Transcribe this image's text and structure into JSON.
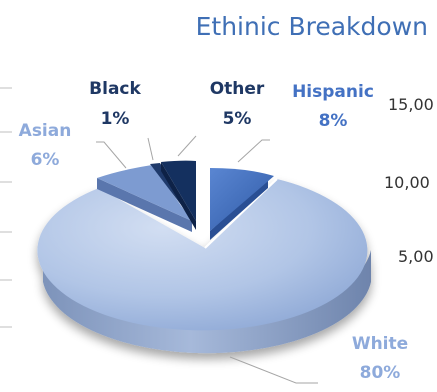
{
  "chart_data": {
    "type": "pie",
    "title": "Ethinic Breakdown",
    "style": "3d-exploded",
    "slices": [
      {
        "label": "Hispanic",
        "percent_label": "8%",
        "value": 8,
        "color": "#4472c4",
        "label_color": "#4472c4"
      },
      {
        "label": "White",
        "percent_label": "80%",
        "value": 80,
        "color": "#a9bfe3",
        "label_color": "#8eaadb"
      },
      {
        "label": "Asian",
        "percent_label": "6%",
        "value": 6,
        "color": "#7d9bd1",
        "label_color": "#8eaadb"
      },
      {
        "label": "Black",
        "percent_label": "1%",
        "value": 1,
        "color": "#1f3a6b",
        "label_color": "#1f3864"
      },
      {
        "label": "Other",
        "percent_label": "5%",
        "value": 5,
        "color": "#14305f",
        "label_color": "#1f3864"
      }
    ],
    "partial_axis_ticks": [
      "15,00",
      "10,00",
      "5,00"
    ]
  }
}
